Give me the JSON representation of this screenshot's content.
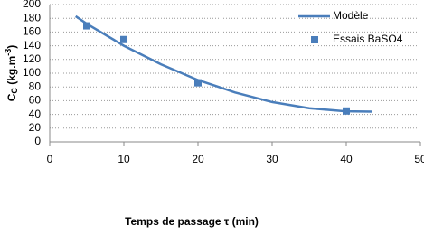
{
  "chart_data": {
    "type": "line",
    "x_label": "Temps de passage τ (min)",
    "y_label": [
      "C",
      "C",
      " (kg.m",
      "-3",
      ")"
    ],
    "xlim": [
      0,
      50
    ],
    "xticks": [
      0,
      10,
      20,
      30,
      40,
      50
    ],
    "ylim": [
      0,
      200
    ],
    "yticks": [
      0,
      20,
      40,
      60,
      80,
      100,
      120,
      140,
      160,
      180,
      200
    ],
    "grid": true,
    "legend": "top-right",
    "series": [
      {
        "name": "Modèle",
        "mode": "line",
        "color": "#4a7ebb",
        "x": [
          3.5,
          5,
          10,
          15,
          20,
          25,
          30,
          35,
          40,
          43.5
        ],
        "values": [
          183,
          172,
          140,
          113,
          90,
          72,
          58,
          49,
          44.5,
          44
        ]
      },
      {
        "name": "Essais BaSO4",
        "mode": "markers",
        "color": "#4a7ebb",
        "x": [
          5,
          10,
          20,
          40
        ],
        "values": [
          169,
          149,
          86,
          45
        ]
      }
    ]
  }
}
